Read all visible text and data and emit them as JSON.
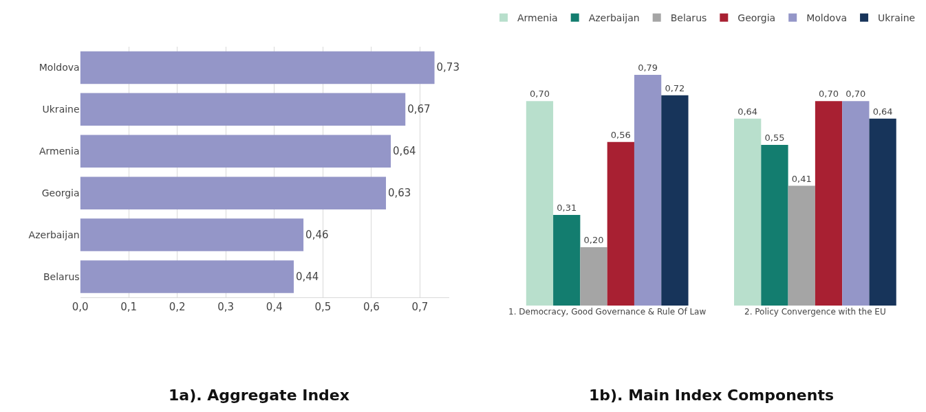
{
  "chart_data": [
    {
      "type": "bar",
      "orientation": "horizontal",
      "title": "1a). Aggregate Index",
      "categories": [
        "Moldova",
        "Ukraine",
        "Armenia",
        "Georgia",
        "Azerbaijan",
        "Belarus"
      ],
      "values": [
        0.73,
        0.67,
        0.64,
        0.63,
        0.46,
        0.44
      ],
      "value_labels": [
        "0,73",
        "0,67",
        "0,64",
        "0,63",
        "0,46",
        "0,44"
      ],
      "color": "#9496c8",
      "xlim": [
        0,
        0.76
      ],
      "xticks": [
        {
          "value": 0,
          "label": "0,0"
        },
        {
          "value": 0.1,
          "label": "0,1"
        },
        {
          "value": 0.2,
          "label": "0,2"
        },
        {
          "value": 0.3,
          "label": "0,3"
        },
        {
          "value": 0.4,
          "label": "0,4"
        },
        {
          "value": 0.5,
          "label": "0,5"
        },
        {
          "value": 0.6,
          "label": "0,6"
        },
        {
          "value": 0.7,
          "label": "0,7"
        }
      ],
      "grid": "x"
    },
    {
      "type": "bar",
      "title": "1b). Main Index Components",
      "categories": [
        "1. Democracy, Good Governance & Rule Of Law",
        "2. Policy Convergence with the EU"
      ],
      "legend": "top",
      "series": [
        {
          "name": "Armenia",
          "color": "#b8dfcc",
          "values": [
            0.7,
            0.64
          ],
          "value_labels": [
            "0,70",
            "0,64"
          ]
        },
        {
          "name": "Azerbaijan",
          "color": "#137d6f",
          "values": [
            0.31,
            0.55
          ],
          "value_labels": [
            "0,31",
            "0,55"
          ]
        },
        {
          "name": "Belarus",
          "color": "#a5a5a5",
          "values": [
            0.2,
            0.41
          ],
          "value_labels": [
            "0,20",
            "0,41"
          ]
        },
        {
          "name": "Georgia",
          "color": "#a82032",
          "values": [
            0.56,
            0.7
          ],
          "value_labels": [
            "0,56",
            "0,70"
          ]
        },
        {
          "name": "Moldova",
          "color": "#9496c8",
          "values": [
            0.79,
            0.7
          ],
          "value_labels": [
            "0,79",
            "0,70"
          ]
        },
        {
          "name": "Ukraine",
          "color": "#17345a",
          "values": [
            0.72,
            0.64
          ],
          "value_labels": [
            "0,72",
            "0,64"
          ]
        }
      ]
    }
  ]
}
